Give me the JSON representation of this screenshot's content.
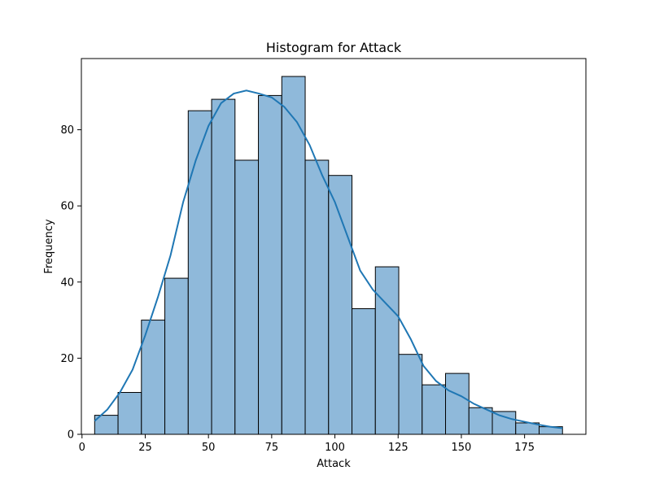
{
  "chart_data": {
    "type": "bar",
    "title": "Histogram for Attack",
    "xlabel": "Attack",
    "ylabel": "Frequency",
    "xlim": [
      -0.25,
      199.25
    ],
    "ylim": [
      0,
      98.7
    ],
    "x_ticks": [
      0,
      25,
      50,
      75,
      100,
      125,
      150,
      175
    ],
    "y_ticks": [
      0,
      20,
      40,
      60,
      80
    ],
    "bins": [
      {
        "start": 5.0,
        "end": 14.25,
        "count": 5
      },
      {
        "start": 14.25,
        "end": 23.5,
        "count": 11
      },
      {
        "start": 23.5,
        "end": 32.75,
        "count": 30
      },
      {
        "start": 32.75,
        "end": 42.0,
        "count": 41
      },
      {
        "start": 42.0,
        "end": 51.25,
        "count": 85
      },
      {
        "start": 51.25,
        "end": 60.5,
        "count": 88
      },
      {
        "start": 60.5,
        "end": 69.75,
        "count": 72
      },
      {
        "start": 69.75,
        "end": 79.0,
        "count": 89
      },
      {
        "start": 79.0,
        "end": 88.25,
        "count": 94
      },
      {
        "start": 88.25,
        "end": 97.5,
        "count": 72
      },
      {
        "start": 97.5,
        "end": 106.75,
        "count": 68
      },
      {
        "start": 106.75,
        "end": 116.0,
        "count": 33
      },
      {
        "start": 116.0,
        "end": 125.25,
        "count": 44
      },
      {
        "start": 125.25,
        "end": 134.5,
        "count": 21
      },
      {
        "start": 134.5,
        "end": 143.75,
        "count": 13
      },
      {
        "start": 143.75,
        "end": 153.0,
        "count": 16
      },
      {
        "start": 153.0,
        "end": 162.25,
        "count": 7
      },
      {
        "start": 162.25,
        "end": 171.5,
        "count": 6
      },
      {
        "start": 171.5,
        "end": 180.75,
        "count": 3
      },
      {
        "start": 180.75,
        "end": 190.0,
        "count": 2
      }
    ],
    "kde": {
      "x": [
        5,
        10,
        15,
        20,
        25,
        30,
        35,
        40,
        45,
        50,
        55,
        60,
        65,
        70,
        75,
        80,
        85,
        90,
        95,
        100,
        105,
        110,
        115,
        120,
        125,
        130,
        135,
        140,
        145,
        150,
        155,
        160,
        165,
        170,
        175,
        180,
        185,
        190
      ],
      "y": [
        3.5,
        6.5,
        11,
        17,
        26,
        36,
        47,
        61,
        72,
        81,
        87,
        89.5,
        90.3,
        89.5,
        88.5,
        86,
        82,
        76,
        68,
        61,
        52,
        43,
        38,
        34.5,
        31,
        25,
        18,
        14,
        11.5,
        10,
        8,
        6.5,
        5,
        4,
        3.3,
        2.6,
        2,
        1.6
      ]
    },
    "colors": {
      "bar_fill": "#8fb9da",
      "bar_edge": "#000000",
      "kde_line": "#1f77b4"
    },
    "grid": false,
    "legend": "none"
  }
}
